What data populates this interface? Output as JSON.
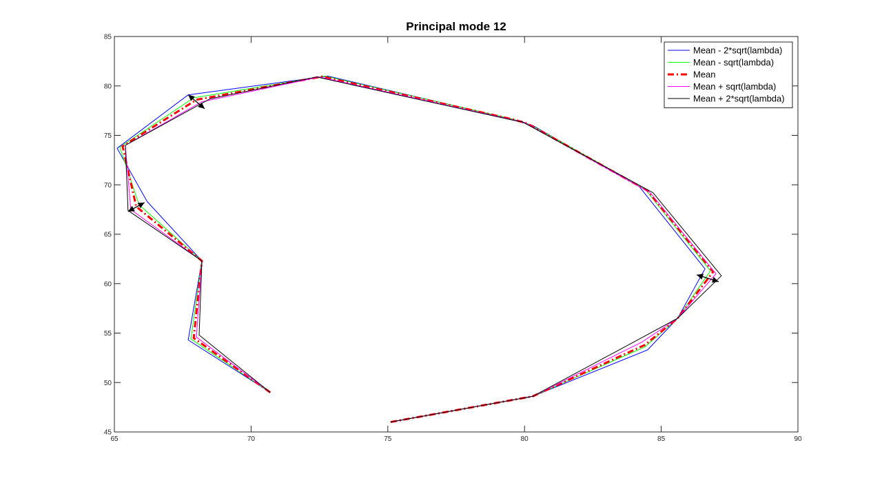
{
  "chart_data": {
    "type": "line",
    "title": "Principal mode 12",
    "xlabel": "",
    "ylabel": "",
    "xlim": [
      65,
      90
    ],
    "ylim": [
      45,
      85
    ],
    "xticks": [
      65,
      70,
      75,
      80,
      85,
      90
    ],
    "yticks": [
      45,
      50,
      55,
      60,
      65,
      70,
      75,
      80,
      85
    ],
    "xtick_labels": [
      "65",
      "70",
      "75",
      "80",
      "85",
      "90"
    ],
    "ytick_labels": [
      "45",
      "50",
      "55",
      "60",
      "65",
      "70",
      "75",
      "80",
      "85"
    ],
    "grid": false,
    "legend_position": "top-right",
    "series": [
      {
        "name": "Mean - 2*sqrt(lambda)",
        "color": "#0000ff",
        "style": "solid",
        "segments": [
          [
            [
              70.7,
              49.0
            ],
            [
              67.7,
              54.3
            ],
            [
              68.2,
              62.3
            ],
            [
              66.2,
              68.3
            ],
            [
              65.1,
              73.7
            ],
            [
              67.7,
              79.1
            ],
            [
              72.8,
              81.0
            ],
            [
              79.3,
              76.8
            ],
            [
              80.3,
              76.0
            ],
            [
              84.2,
              69.8
            ],
            [
              86.6,
              61.5
            ],
            [
              85.6,
              56.5
            ],
            [
              84.5,
              53.3
            ],
            [
              80.3,
              48.6
            ],
            [
              75.1,
              46.0
            ]
          ]
        ]
      },
      {
        "name": "Mean - sqrt(lambda)",
        "color": "#00ff00",
        "style": "solid",
        "segments": [
          [
            [
              70.7,
              49.0
            ],
            [
              67.8,
              54.4
            ],
            [
              68.2,
              62.3
            ],
            [
              65.9,
              68.0
            ],
            [
              65.2,
              73.8
            ],
            [
              67.9,
              78.8
            ],
            [
              72.7,
              81.0
            ],
            [
              79.5,
              76.7
            ],
            [
              80.2,
              76.1
            ],
            [
              84.4,
              69.6
            ],
            [
              86.8,
              61.3
            ],
            [
              85.6,
              56.5
            ],
            [
              84.4,
              53.6
            ],
            [
              80.3,
              48.6
            ],
            [
              75.1,
              46.0
            ]
          ]
        ]
      },
      {
        "name": "Mean",
        "color": "#ff0000",
        "style": "dashdot",
        "segments": [
          [
            [
              70.7,
              49.0
            ],
            [
              67.9,
              54.5
            ],
            [
              68.2,
              62.3
            ],
            [
              65.8,
              67.8
            ],
            [
              65.3,
              73.9
            ],
            [
              68.0,
              78.6
            ],
            [
              72.6,
              80.95
            ],
            [
              79.6,
              76.6
            ],
            [
              80.1,
              76.2
            ],
            [
              84.5,
              69.4
            ],
            [
              86.9,
              61.2
            ],
            [
              85.6,
              56.5
            ],
            [
              84.4,
              53.8
            ],
            [
              80.3,
              48.6
            ],
            [
              75.1,
              46.0
            ]
          ]
        ]
      },
      {
        "name": "Mean + sqrt(lambda)",
        "color": "#ff00ff",
        "style": "solid",
        "segments": [
          [
            [
              70.7,
              49.0
            ],
            [
              68.0,
              54.6
            ],
            [
              68.2,
              62.3
            ],
            [
              65.6,
              67.5
            ],
            [
              65.4,
              74.0
            ],
            [
              68.2,
              78.4
            ],
            [
              72.5,
              80.9
            ],
            [
              79.7,
              76.5
            ],
            [
              80.0,
              76.3
            ],
            [
              84.6,
              69.2
            ],
            [
              87.0,
              61.0
            ],
            [
              85.6,
              56.5
            ],
            [
              84.3,
              54.1
            ],
            [
              80.3,
              48.6
            ],
            [
              75.1,
              46.0
            ]
          ]
        ]
      },
      {
        "name": "Mean + 2*sqrt(lambda)",
        "color": "#000000",
        "style": "solid",
        "segments": [
          [
            [
              70.7,
              49.0
            ],
            [
              68.1,
              54.8
            ],
            [
              68.2,
              62.3
            ],
            [
              65.5,
              67.4
            ],
            [
              65.4,
              74.0
            ],
            [
              68.5,
              78.7
            ],
            [
              72.4,
              80.9
            ],
            [
              79.8,
              76.4
            ],
            [
              79.9,
              76.4
            ],
            [
              84.7,
              69.2
            ],
            [
              87.2,
              60.8
            ],
            [
              85.6,
              56.5
            ],
            [
              84.2,
              54.4
            ],
            [
              80.3,
              48.6
            ],
            [
              75.1,
              46.0
            ]
          ]
        ]
      }
    ],
    "arrows": [
      {
        "from": [
          67.7,
          79.1
        ],
        "to": [
          68.3,
          77.7
        ]
      },
      {
        "from": [
          66.1,
          68.2
        ],
        "to": [
          65.5,
          67.3
        ]
      },
      {
        "from": [
          86.3,
          60.9
        ],
        "to": [
          87.1,
          60.2
        ]
      }
    ]
  }
}
